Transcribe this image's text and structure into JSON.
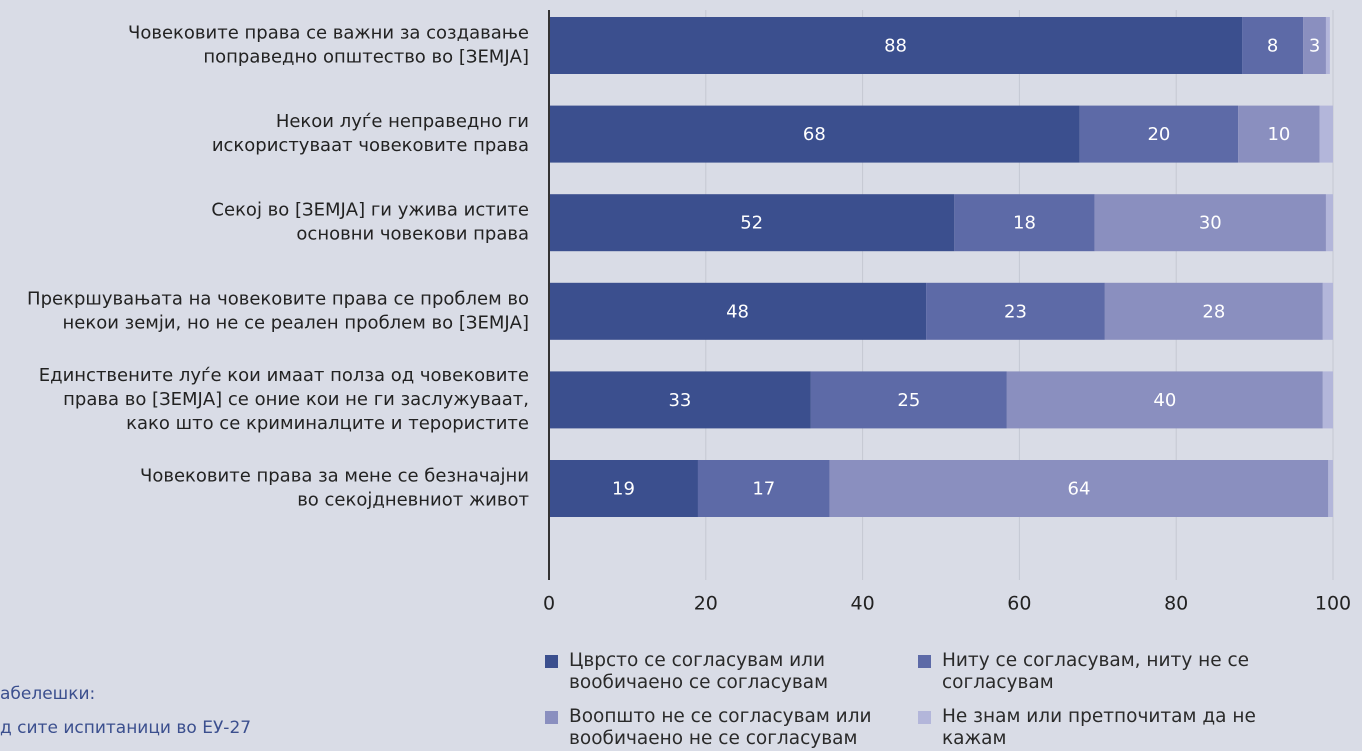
{
  "chart_data": {
    "type": "stacked-barh",
    "categories": [
      [
        "Човековите права се важни за создавање",
        "поправедно општество во [ЗЕМЈА]"
      ],
      [
        "Некои луѓе неправедно ги",
        "искористуваат човековите права"
      ],
      [
        "Секој во [ЗЕМЈА] ги ужива истите",
        "основни човекови права"
      ],
      [
        "Прекршувањата на човековите права се проблем во",
        "некои земји, но не се реален проблем во [ЗЕМЈА]"
      ],
      [
        "Единствените луѓе кои имаат полза од човековите",
        "права во [ЗЕМЈА] се оние кои не ги заслужуваат,",
        "како што се криминалците и терористите"
      ],
      [
        "Човековите права за мене се безначајни",
        "во секојдневниот живот"
      ]
    ],
    "series": [
      {
        "name": "Цврсто се согласувам или вообичаено се согласувам",
        "color": "#3b4f8e",
        "values": [
          88.4,
          67.7,
          51.7,
          48.1,
          33.4,
          19.0
        ],
        "value_labels": [
          "88",
          "68",
          "52",
          "48",
          "33",
          "19"
        ]
      },
      {
        "name": "Ниту се согласувам, ниту не се согласувам",
        "color": "#5d6aa7",
        "values": [
          7.8,
          20.2,
          17.9,
          22.8,
          25.0,
          16.8
        ],
        "value_labels": [
          "8",
          "20",
          "18",
          "23",
          "25",
          "17"
        ]
      },
      {
        "name": "Воопшто не се согласувам или вообичаено не се согласувам",
        "color": "#8a8fbf",
        "values": [
          2.9,
          10.4,
          29.5,
          27.8,
          40.3,
          63.6
        ],
        "value_labels": [
          "3",
          "10",
          "30",
          "28",
          "40",
          "64"
        ]
      },
      {
        "name": "Не знам или претпочитам да не кажам",
        "color": "#b3b6da",
        "values": [
          0.5,
          1.7,
          0.9,
          1.3,
          1.3,
          0.6
        ]
      }
    ],
    "xlim": [
      0,
      100
    ],
    "xticks": [
      0,
      20,
      40,
      60,
      80,
      100
    ],
    "grid": true,
    "notes": [
      "абелешки:",
      "д сите испитаници во ЕУ-27"
    ]
  }
}
